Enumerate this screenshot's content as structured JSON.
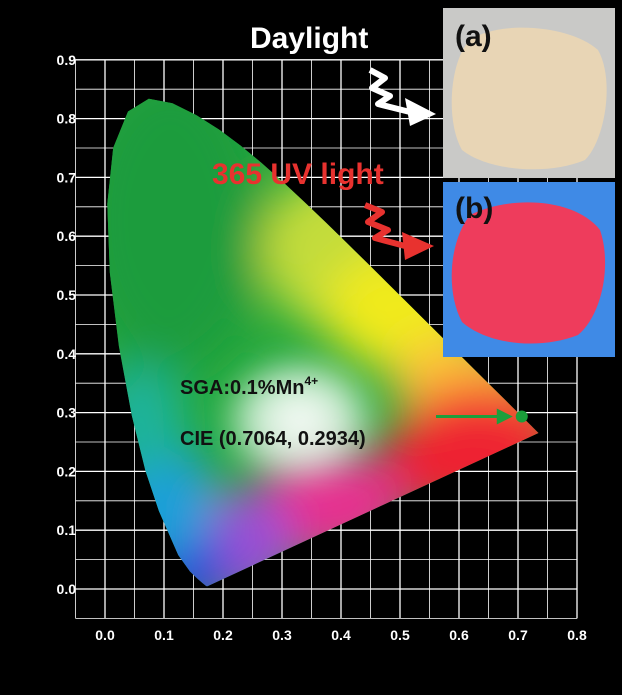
{
  "chart_data": {
    "type": "scatter",
    "diagram": "CIE 1931 chromaticity",
    "x_ticks": [
      "0.0",
      "0.1",
      "0.2",
      "0.3",
      "0.4",
      "0.5",
      "0.6",
      "0.7",
      "0.8"
    ],
    "y_ticks": [
      "0.0",
      "0.1",
      "0.2",
      "0.3",
      "0.4",
      "0.5",
      "0.6",
      "0.7",
      "0.8",
      "0.9"
    ],
    "xlim": [
      -0.05,
      0.8
    ],
    "ylim": [
      -0.05,
      0.9
    ],
    "grid": true,
    "point": {
      "x": 0.7064,
      "y": 0.2934,
      "color": "#1a9e3a"
    }
  },
  "annotations": {
    "daylight": "Daylight",
    "uv": "365 UV light",
    "sample": "SGA:0.1%Mn",
    "sample_sup": "4+",
    "cie": "CIE (0.7064, 0.2934)"
  },
  "insets": {
    "a_label": "(a)",
    "b_label": "(b)",
    "a_color": "#e8d5b5",
    "b_color": "#ee3c5c",
    "a_bg": "#c9c9c7",
    "b_bg": "#3f8ae6"
  },
  "colors": {
    "background": "#000000",
    "grid": "#ffffff",
    "uv_text": "#e8322f",
    "arrow_green": "#1e9e3c"
  }
}
